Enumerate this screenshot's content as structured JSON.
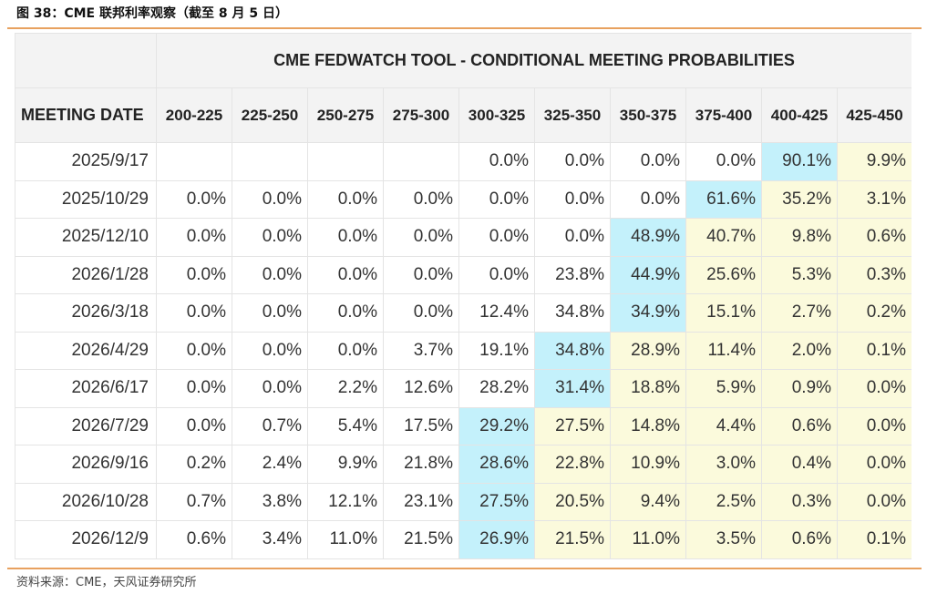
{
  "caption": "图 38：CME 联邦利率观察（截至 8 月 5 日）",
  "table": {
    "title": "CME FEDWATCH TOOL - CONDITIONAL MEETING PROBABILITIES",
    "date_header": "MEETING DATE",
    "rate_headers": [
      "200-225",
      "225-250",
      "250-275",
      "275-300",
      "300-325",
      "325-350",
      "350-375",
      "375-400",
      "400-425",
      "425-450"
    ],
    "rows": [
      {
        "date": "2025/9/17",
        "values": [
          "",
          "",
          "",
          "",
          "0.0%",
          "0.0%",
          "0.0%",
          "0.0%",
          "90.1%",
          "9.9%"
        ]
      },
      {
        "date": "2025/10/29",
        "values": [
          "0.0%",
          "0.0%",
          "0.0%",
          "0.0%",
          "0.0%",
          "0.0%",
          "0.0%",
          "61.6%",
          "35.2%",
          "3.1%"
        ]
      },
      {
        "date": "2025/12/10",
        "values": [
          "0.0%",
          "0.0%",
          "0.0%",
          "0.0%",
          "0.0%",
          "0.0%",
          "48.9%",
          "40.7%",
          "9.8%",
          "0.6%"
        ]
      },
      {
        "date": "2026/1/28",
        "values": [
          "0.0%",
          "0.0%",
          "0.0%",
          "0.0%",
          "0.0%",
          "23.8%",
          "44.9%",
          "25.6%",
          "5.3%",
          "0.3%"
        ]
      },
      {
        "date": "2026/3/18",
        "values": [
          "0.0%",
          "0.0%",
          "0.0%",
          "0.0%",
          "12.4%",
          "34.8%",
          "34.9%",
          "15.1%",
          "2.7%",
          "0.2%"
        ]
      },
      {
        "date": "2026/4/29",
        "values": [
          "0.0%",
          "0.0%",
          "0.0%",
          "3.7%",
          "19.1%",
          "34.8%",
          "28.9%",
          "11.4%",
          "2.0%",
          "0.1%"
        ]
      },
      {
        "date": "2026/6/17",
        "values": [
          "0.0%",
          "0.0%",
          "2.2%",
          "12.6%",
          "28.2%",
          "31.4%",
          "18.8%",
          "5.9%",
          "0.9%",
          "0.0%"
        ]
      },
      {
        "date": "2026/7/29",
        "values": [
          "0.0%",
          "0.7%",
          "5.4%",
          "17.5%",
          "29.2%",
          "27.5%",
          "14.8%",
          "4.4%",
          "0.6%",
          "0.0%"
        ]
      },
      {
        "date": "2026/9/16",
        "values": [
          "0.2%",
          "2.4%",
          "9.9%",
          "21.8%",
          "28.6%",
          "22.8%",
          "10.9%",
          "3.0%",
          "0.4%",
          "0.0%"
        ]
      },
      {
        "date": "2026/10/28",
        "values": [
          "0.7%",
          "3.8%",
          "12.1%",
          "23.1%",
          "27.5%",
          "20.5%",
          "9.4%",
          "2.5%",
          "0.3%",
          "0.0%"
        ]
      },
      {
        "date": "2026/12/9",
        "values": [
          "0.6%",
          "3.4%",
          "11.0%",
          "21.5%",
          "26.9%",
          "21.5%",
          "11.0%",
          "3.5%",
          "0.6%",
          "0.1%"
        ]
      }
    ],
    "max_cells": [
      [
        0,
        8
      ],
      [
        1,
        7
      ],
      [
        2,
        6
      ],
      [
        3,
        6
      ],
      [
        4,
        6
      ],
      [
        5,
        5
      ],
      [
        6,
        5
      ],
      [
        7,
        4
      ],
      [
        8,
        4
      ],
      [
        9,
        4
      ],
      [
        10,
        4
      ]
    ],
    "current_col_start": 9,
    "colors": {
      "max": "#c4f1fb",
      "highlight": "#fbfadc",
      "header_bg": "#f3f3f3",
      "rule": "#e8a15f"
    }
  },
  "source": "资料来源：CME，天风证券研究所"
}
